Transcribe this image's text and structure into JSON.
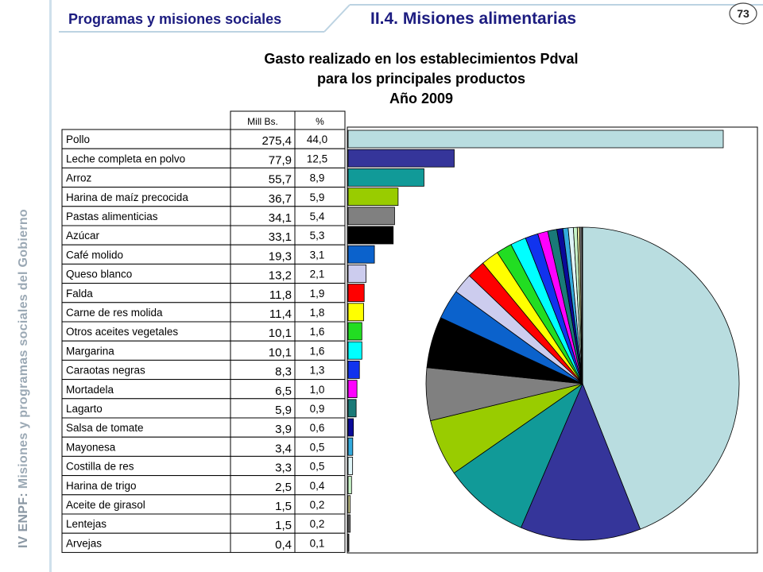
{
  "sidebar": {
    "prefix": "IV ENPF: ",
    "text": "Misiones y programas sociales del Gobierno"
  },
  "header": {
    "section": "Programas y misiones sociales",
    "subsection": "II.4. Misiones alimentarias",
    "page_number": "73"
  },
  "chart_data": {
    "type": "bar",
    "title_lines": [
      "Gasto realizado en los establecimientos Pdval",
      "para los principales productos",
      "Año 2009"
    ],
    "column_headers": [
      "Mill Bs.",
      "%"
    ],
    "categories": [
      "Pollo",
      "Leche completa en polvo",
      "Arroz",
      "Harina de maíz precocida",
      "Pastas alimenticias",
      "Azúcar",
      "Café molido",
      "Queso blanco",
      "Falda",
      "Carne de res molida",
      "Otros aceites vegetales",
      "Margarina",
      "Caraotas negras",
      "Mortadela",
      "Lagarto",
      "Salsa de tomate",
      "Mayonesa",
      "Costilla de res",
      "Harina de trigo",
      "Aceite de girasol",
      "Lentejas",
      "Arvejas"
    ],
    "values_label": [
      "275,4",
      "77,9",
      "55,7",
      "36,7",
      "34,1",
      "33,1",
      "19,3",
      "13,2",
      "11,8",
      "11,4",
      "10,1",
      "10,1",
      "8,3",
      "6,5",
      "5,9",
      "3,9",
      "3,4",
      "3,3",
      "2,5",
      "1,5",
      "1,5",
      "0,4"
    ],
    "percent_label": [
      "44,0",
      "12,5",
      "8,9",
      "5,9",
      "5,4",
      "5,3",
      "3,1",
      "2,1",
      "1,9",
      "1,8",
      "1,6",
      "1,6",
      "1,3",
      "1,0",
      "0,9",
      "0,6",
      "0,5",
      "0,5",
      "0,4",
      "0,2",
      "0,2",
      "0,1"
    ],
    "values": [
      275.4,
      77.9,
      55.7,
      36.7,
      34.1,
      33.1,
      19.3,
      13.2,
      11.8,
      11.4,
      10.1,
      10.1,
      8.3,
      6.5,
      5.9,
      3.9,
      3.4,
      3.3,
      2.5,
      1.5,
      1.5,
      0.4
    ],
    "percent": [
      44.0,
      12.5,
      8.9,
      5.9,
      5.4,
      5.3,
      3.1,
      2.1,
      1.9,
      1.8,
      1.6,
      1.6,
      1.3,
      1.0,
      0.9,
      0.6,
      0.5,
      0.5,
      0.4,
      0.2,
      0.2,
      0.1
    ],
    "colors": [
      "#b9dde0",
      "#35359a",
      "#119a98",
      "#99cc00",
      "#808080",
      "#000000",
      "#0b62cc",
      "#ccccee",
      "#ff0000",
      "#ffff00",
      "#22dd22",
      "#00ffff",
      "#1133ee",
      "#ff00ff",
      "#1a7a78",
      "#0a0a99",
      "#33aadd",
      "#dff5f8",
      "#c8f5c8",
      "#dddd99",
      "#777777",
      "#cccccc"
    ],
    "pie_data": "share of total by product (same series as bars)"
  }
}
